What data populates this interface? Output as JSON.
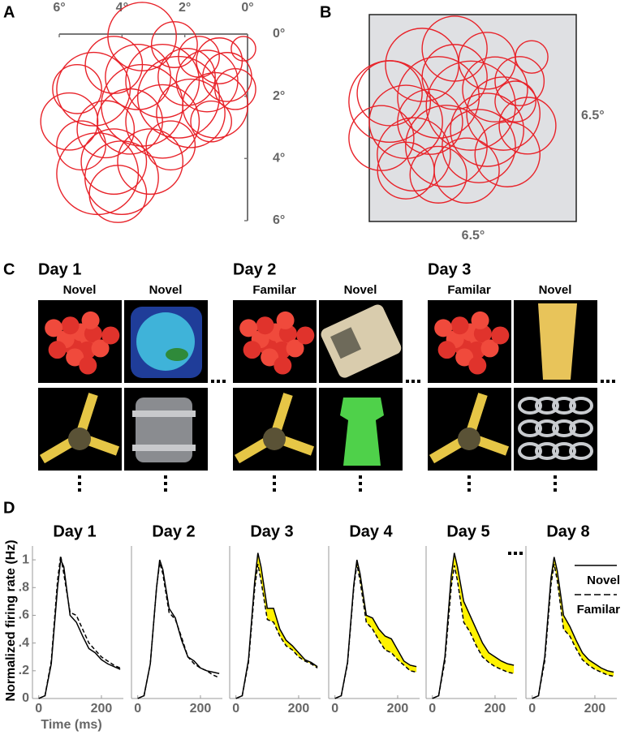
{
  "panel_labels": {
    "a": "A",
    "b": "B",
    "c": "C",
    "d": "D"
  },
  "panel_a": {
    "circle_color": "#e8232a",
    "xlim": [
      6,
      0
    ],
    "ylim": [
      0,
      6
    ],
    "xticks": [
      {
        "value": 6,
        "label": "6°"
      },
      {
        "value": 4,
        "label": "4°"
      },
      {
        "value": 2,
        "label": "2°"
      },
      {
        "value": 0,
        "label": "0°"
      }
    ],
    "yticks": [
      {
        "value": 0,
        "label": "0°"
      },
      {
        "value": 2,
        "label": "2°"
      },
      {
        "value": 4,
        "label": "4°"
      },
      {
        "value": 6,
        "label": "6°"
      }
    ],
    "fields": [
      {
        "x": 3.36,
        "y": 0.08,
        "r": 1.09
      },
      {
        "x": 2.33,
        "y": 0.34,
        "r": 0.73
      },
      {
        "x": 4.91,
        "y": 1.77,
        "r": 1.17
      },
      {
        "x": 5.43,
        "y": 1.77,
        "r": 0.78
      },
      {
        "x": 4.26,
        "y": 0.99,
        "r": 0.91
      },
      {
        "x": 3.49,
        "y": 1.38,
        "r": 1.04
      },
      {
        "x": 2.71,
        "y": 1.51,
        "r": 1.17
      },
      {
        "x": 1.94,
        "y": 1.38,
        "r": 0.91
      },
      {
        "x": 1.29,
        "y": 1.51,
        "r": 0.98
      },
      {
        "x": 0.65,
        "y": 1.38,
        "r": 0.78
      },
      {
        "x": 0.39,
        "y": 1.77,
        "r": 0.65
      },
      {
        "x": 1.03,
        "y": 2.29,
        "r": 1.04
      },
      {
        "x": 1.81,
        "y": 2.55,
        "r": 1.09
      },
      {
        "x": 2.71,
        "y": 2.81,
        "r": 1.17
      },
      {
        "x": 3.75,
        "y": 2.81,
        "r": 1.04
      },
      {
        "x": 4.52,
        "y": 3.06,
        "r": 0.91
      },
      {
        "x": 0.9,
        "y": 0.86,
        "r": 0.73
      },
      {
        "x": 1.55,
        "y": 0.73,
        "r": 0.65
      },
      {
        "x": 0.13,
        "y": 0.47,
        "r": 0.39
      },
      {
        "x": 4.01,
        "y": 4.62,
        "r": 1.17
      },
      {
        "x": 4.26,
        "y": 4.1,
        "r": 1.04
      },
      {
        "x": 4.78,
        "y": 4.49,
        "r": 1.3
      },
      {
        "x": 4.13,
        "y": 5.14,
        "r": 0.91
      },
      {
        "x": 3.1,
        "y": 4.1,
        "r": 1.04
      },
      {
        "x": 2.45,
        "y": 3.58,
        "r": 0.78
      },
      {
        "x": 3.36,
        "y": 2.29,
        "r": 1.3
      },
      {
        "x": 2.2,
        "y": 2.03,
        "r": 1.3
      },
      {
        "x": 1.16,
        "y": 2.81,
        "r": 0.65
      },
      {
        "x": 5.68,
        "y": 2.81,
        "r": 0.91
      },
      {
        "x": 5.3,
        "y": 3.58,
        "r": 0.78
      }
    ]
  },
  "panel_b": {
    "circle_color": "#e8232a",
    "background": "#dfe0e3",
    "size": 6.5,
    "width_label": "6.5°",
    "height_label": "6.5°",
    "fields": [
      {
        "x": 0.64,
        "y": 2.73,
        "r": 1.28
      },
      {
        "x": 1.66,
        "y": 1.58,
        "r": 1.15
      },
      {
        "x": 2.68,
        "y": 1.07,
        "r": 1.02
      },
      {
        "x": 3.7,
        "y": 1.45,
        "r": 0.89
      },
      {
        "x": 4.72,
        "y": 2.09,
        "r": 0.77
      },
      {
        "x": 5.1,
        "y": 1.33,
        "r": 0.51
      },
      {
        "x": 1.15,
        "y": 3.37,
        "r": 1.15
      },
      {
        "x": 2.17,
        "y": 2.6,
        "r": 1.28
      },
      {
        "x": 3.19,
        "y": 2.86,
        "r": 1.4
      },
      {
        "x": 4.21,
        "y": 3.11,
        "r": 1.15
      },
      {
        "x": 4.97,
        "y": 3.49,
        "r": 0.89
      },
      {
        "x": 0.38,
        "y": 3.88,
        "r": 1.02
      },
      {
        "x": 1.4,
        "y": 4.39,
        "r": 1.15
      },
      {
        "x": 2.42,
        "y": 4.13,
        "r": 1.28
      },
      {
        "x": 3.44,
        "y": 4.13,
        "r": 1.15
      },
      {
        "x": 4.34,
        "y": 4.39,
        "r": 1.02
      },
      {
        "x": 1.15,
        "y": 4.9,
        "r": 0.89
      },
      {
        "x": 2.17,
        "y": 5.03,
        "r": 0.89
      },
      {
        "x": 3.06,
        "y": 4.9,
        "r": 1.02
      },
      {
        "x": 3.95,
        "y": 2.35,
        "r": 1.02
      },
      {
        "x": 4.59,
        "y": 2.73,
        "r": 0.64
      },
      {
        "x": 2.68,
        "y": 1.96,
        "r": 1.02
      },
      {
        "x": 1.91,
        "y": 3.37,
        "r": 1.02
      },
      {
        "x": 3.7,
        "y": 3.62,
        "r": 1.15
      },
      {
        "x": 0.64,
        "y": 2.47,
        "r": 1.02
      }
    ]
  },
  "panel_c": {
    "days": [
      {
        "title": "Day 1",
        "columns": [
          "Novel",
          "Novel"
        ]
      },
      {
        "title": "Day 2",
        "columns": [
          "Familar",
          "Novel"
        ]
      },
      {
        "title": "Day 3",
        "columns": [
          "Familar",
          "Novel"
        ]
      }
    ]
  },
  "chart_data": [
    {
      "type": "line",
      "title": "Day 1",
      "y_label": "Normalized firing rate (Hz)",
      "x_label": "Time (ms)",
      "xlim": [
        -20,
        270
      ],
      "ylim": [
        0,
        1.1
      ],
      "xticks": [
        0,
        200
      ],
      "yticks": [
        0,
        {
          "value": 0.2,
          "label": ".2"
        },
        {
          "value": 0.4,
          "label": ".4"
        },
        {
          "value": 0.6,
          "label": ".6"
        },
        {
          "value": 0.8,
          "label": ".8"
        },
        1
      ],
      "fill_between": false,
      "x": [
        0,
        20,
        40,
        60,
        70,
        80,
        100,
        120,
        140,
        160,
        180,
        200,
        220,
        240,
        260
      ],
      "series": [
        {
          "name": "Novel",
          "color": "#000000",
          "dashed": false,
          "values": [
            0,
            0.02,
            0.25,
            0.8,
            1.0,
            0.95,
            0.6,
            0.55,
            0.45,
            0.36,
            0.33,
            0.28,
            0.25,
            0.23,
            0.21
          ]
        },
        {
          "name": "Familar",
          "color": "#000000",
          "dashed": true,
          "values": [
            0,
            0.02,
            0.27,
            0.85,
            1.03,
            0.9,
            0.62,
            0.6,
            0.5,
            0.4,
            0.35,
            0.3,
            0.27,
            0.24,
            0.22
          ]
        }
      ]
    },
    {
      "type": "line",
      "title": "Day 2",
      "xlim": [
        -20,
        270
      ],
      "ylim": [
        0,
        1.1
      ],
      "xticks": [
        0,
        200
      ],
      "fill_between": false,
      "x": [
        0,
        20,
        40,
        60,
        70,
        80,
        100,
        120,
        140,
        160,
        180,
        200,
        220,
        240,
        260
      ],
      "series": [
        {
          "name": "Novel",
          "color": "#000000",
          "dashed": false,
          "values": [
            0,
            0.02,
            0.25,
            0.8,
            1.0,
            0.93,
            0.65,
            0.58,
            0.42,
            0.3,
            0.27,
            0.22,
            0.2,
            0.19,
            0.18
          ]
        },
        {
          "name": "Familar",
          "color": "#000000",
          "dashed": true,
          "values": [
            0,
            0.02,
            0.25,
            0.8,
            0.98,
            0.9,
            0.62,
            0.57,
            0.44,
            0.3,
            0.25,
            0.22,
            0.2,
            0.17,
            0.15
          ]
        }
      ]
    },
    {
      "type": "line",
      "title": "Day 3",
      "xlim": [
        -20,
        270
      ],
      "ylim": [
        0,
        1.1
      ],
      "xticks": [
        0,
        200
      ],
      "fill_between": true,
      "fill_color": "#fff200",
      "x": [
        0,
        20,
        40,
        60,
        70,
        80,
        100,
        120,
        140,
        160,
        180,
        200,
        220,
        240,
        260
      ],
      "series": [
        {
          "name": "Novel",
          "color": "#000000",
          "dashed": false,
          "values": [
            0,
            0.02,
            0.28,
            0.85,
            1.05,
            0.95,
            0.65,
            0.65,
            0.5,
            0.42,
            0.38,
            0.33,
            0.28,
            0.26,
            0.23
          ]
        },
        {
          "name": "Familar",
          "color": "#000000",
          "dashed": true,
          "values": [
            0,
            0.02,
            0.26,
            0.8,
            0.97,
            0.85,
            0.57,
            0.55,
            0.45,
            0.38,
            0.35,
            0.3,
            0.27,
            0.25,
            0.22
          ]
        }
      ]
    },
    {
      "type": "line",
      "title": "Day 4",
      "xlim": [
        -20,
        270
      ],
      "ylim": [
        0,
        1.1
      ],
      "xticks": [
        0,
        200
      ],
      "fill_between": true,
      "fill_color": "#fff200",
      "x": [
        0,
        20,
        40,
        60,
        70,
        80,
        100,
        120,
        140,
        160,
        180,
        200,
        220,
        240,
        260
      ],
      "series": [
        {
          "name": "Novel",
          "color": "#000000",
          "dashed": false,
          "values": [
            0,
            0.02,
            0.26,
            0.82,
            1.0,
            0.9,
            0.6,
            0.58,
            0.5,
            0.45,
            0.43,
            0.35,
            0.27,
            0.24,
            0.23
          ]
        },
        {
          "name": "Familar",
          "color": "#000000",
          "dashed": true,
          "values": [
            0,
            0.02,
            0.25,
            0.8,
            0.97,
            0.85,
            0.55,
            0.5,
            0.42,
            0.35,
            0.33,
            0.28,
            0.24,
            0.2,
            0.19
          ]
        }
      ]
    },
    {
      "type": "line",
      "title": "Day 5",
      "xlim": [
        -20,
        270
      ],
      "ylim": [
        0,
        1.1
      ],
      "xticks": [
        0,
        200
      ],
      "fill_between": true,
      "fill_color": "#fff200",
      "x": [
        0,
        20,
        40,
        60,
        70,
        80,
        100,
        120,
        140,
        160,
        180,
        200,
        220,
        240,
        260
      ],
      "series": [
        {
          "name": "Novel",
          "color": "#000000",
          "dashed": false,
          "values": [
            0,
            0.02,
            0.3,
            0.88,
            1.05,
            0.95,
            0.7,
            0.6,
            0.5,
            0.4,
            0.33,
            0.3,
            0.27,
            0.25,
            0.24
          ]
        },
        {
          "name": "Familar",
          "color": "#000000",
          "dashed": true,
          "values": [
            0,
            0.02,
            0.27,
            0.8,
            0.96,
            0.85,
            0.55,
            0.48,
            0.38,
            0.3,
            0.26,
            0.23,
            0.21,
            0.19,
            0.18
          ]
        }
      ]
    },
    {
      "type": "line",
      "title": "Day 8",
      "xlim": [
        -20,
        270
      ],
      "ylim": [
        0,
        1.1
      ],
      "xticks": [
        0,
        200
      ],
      "fill_between": true,
      "fill_color": "#fff200",
      "legend": "upper right",
      "x": [
        0,
        20,
        40,
        60,
        70,
        80,
        100,
        120,
        140,
        160,
        180,
        200,
        220,
        240,
        260
      ],
      "series": [
        {
          "name": "Novel",
          "color": "#000000",
          "dashed": false,
          "values": [
            0,
            0.02,
            0.3,
            0.87,
            1.02,
            0.92,
            0.6,
            0.52,
            0.42,
            0.33,
            0.28,
            0.25,
            0.22,
            0.2,
            0.19
          ]
        },
        {
          "name": "Familar",
          "color": "#000000",
          "dashed": true,
          "values": [
            0,
            0.02,
            0.27,
            0.82,
            0.97,
            0.85,
            0.5,
            0.45,
            0.36,
            0.28,
            0.24,
            0.21,
            0.19,
            0.17,
            0.16
          ]
        }
      ]
    }
  ]
}
